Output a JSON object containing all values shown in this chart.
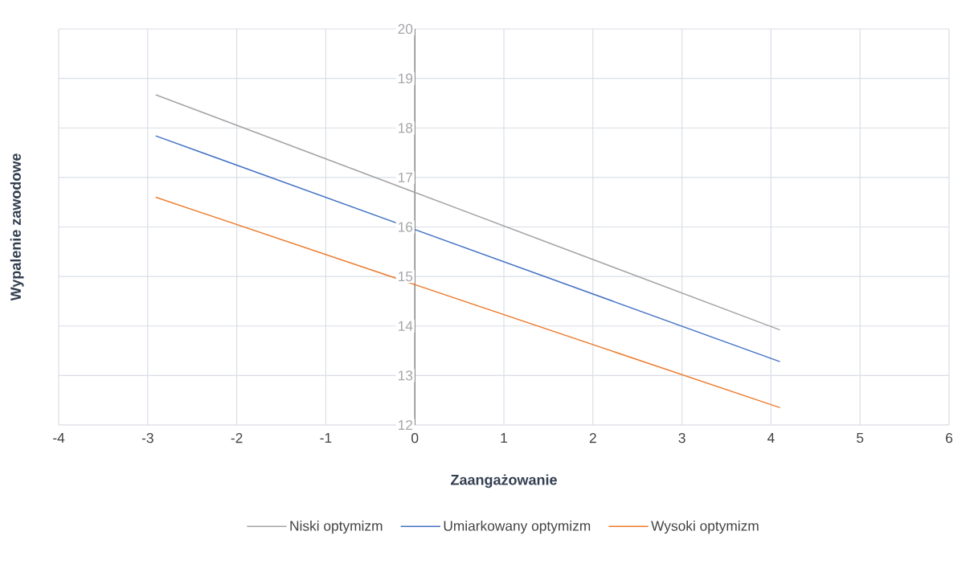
{
  "chart_data": {
    "type": "line",
    "xlabel": "Zaangażowanie",
    "ylabel": "Wypalenie zawodowe",
    "x": [
      -2.91,
      4.1
    ],
    "series": [
      {
        "name": "Niski optymizm",
        "color": "#a5a5a5",
        "values": [
          18.67,
          13.92
        ]
      },
      {
        "name": "Umiarkowany optymizm",
        "color": "#4472c4",
        "values": [
          17.84,
          13.28
        ]
      },
      {
        "name": "Wysoki optymizm",
        "color": "#ed7d31",
        "values": [
          16.6,
          12.35
        ]
      }
    ],
    "xlim": [
      -4,
      6
    ],
    "ylim": [
      12,
      20
    ],
    "xticks": [
      -4,
      -3,
      -2,
      -1,
      0,
      1,
      2,
      3,
      4,
      5,
      6
    ],
    "yticks": [
      12,
      13,
      14,
      15,
      16,
      17,
      18,
      19,
      20
    ],
    "grid": true,
    "legend": "bottom"
  }
}
